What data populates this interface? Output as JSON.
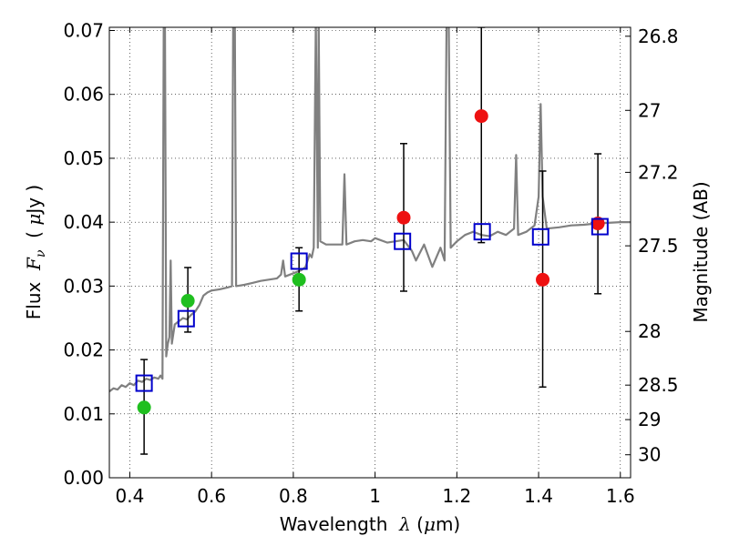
{
  "chart_data": {
    "type": "scatter",
    "xlabel_prefix": "Wavelength  ",
    "xlabel_symbol": "λ",
    "xlabel_suffix": " (",
    "xlabel_mu": "μ",
    "xlabel_unit": "m)",
    "ylabel_prefix": "Flux  ",
    "ylabel_symbol": "F",
    "ylabel_sub": "ν",
    "ylabel_mid": "  ( ",
    "ylabel_mu": "μ",
    "ylabel_unit": "Jy )",
    "y2label": "Magnitude (AB)",
    "xlim": [
      0.35,
      1.625
    ],
    "ylim": [
      0.0,
      0.0705
    ],
    "grid": true,
    "x_ticks": [
      0.4,
      0.6,
      0.8,
      1.0,
      1.2,
      1.4,
      1.6
    ],
    "x_tick_labels": [
      "0.4",
      "0.6",
      "0.8",
      "1",
      "1.2",
      "1.4",
      "1.6"
    ],
    "y_ticks": [
      0.0,
      0.01,
      0.02,
      0.03,
      0.04,
      0.05,
      0.06,
      0.07
    ],
    "y_tick_labels": [
      "0.00",
      "0.01",
      "0.02",
      "0.03",
      "0.04",
      "0.05",
      "0.06",
      "0.07"
    ],
    "y2_ticks": [
      {
        "label": "26.8",
        "flux": 0.0691
      },
      {
        "label": "27",
        "flux": 0.0575
      },
      {
        "label": "27.2",
        "flux": 0.0478
      },
      {
        "label": "27.5",
        "flux": 0.0363
      },
      {
        "label": "28",
        "flux": 0.0229
      },
      {
        "label": "28.5",
        "flux": 0.0145
      },
      {
        "label": "29",
        "flux": 0.0091
      },
      {
        "label": "30",
        "flux": 0.0036
      }
    ],
    "colors": {
      "spectrum": "#808080",
      "green_points": "#1fbf1f",
      "red_points": "#ee1111",
      "model_boxes": "#0000cc",
      "errorbars": "#000000"
    },
    "series": [
      {
        "name": "model_spectrum",
        "kind": "line",
        "points": [
          [
            0.35,
            0.0135
          ],
          [
            0.36,
            0.014
          ],
          [
            0.37,
            0.0138
          ],
          [
            0.38,
            0.0145
          ],
          [
            0.39,
            0.0142
          ],
          [
            0.4,
            0.0148
          ],
          [
            0.41,
            0.0145
          ],
          [
            0.42,
            0.0152
          ],
          [
            0.43,
            0.015
          ],
          [
            0.44,
            0.0155
          ],
          [
            0.45,
            0.0153
          ],
          [
            0.46,
            0.0157
          ],
          [
            0.47,
            0.0155
          ],
          [
            0.475,
            0.016
          ],
          [
            0.48,
            0.0155
          ],
          [
            0.483,
            0.072
          ],
          [
            0.486,
            0.072
          ],
          [
            0.489,
            0.019
          ],
          [
            0.493,
            0.021
          ],
          [
            0.497,
            0.022
          ],
          [
            0.5,
            0.034
          ],
          [
            0.503,
            0.021
          ],
          [
            0.51,
            0.024
          ],
          [
            0.52,
            0.0245
          ],
          [
            0.53,
            0.025
          ],
          [
            0.54,
            0.0248
          ],
          [
            0.55,
            0.0255
          ],
          [
            0.56,
            0.026
          ],
          [
            0.57,
            0.027
          ],
          [
            0.58,
            0.0285
          ],
          [
            0.59,
            0.029
          ],
          [
            0.6,
            0.0293
          ],
          [
            0.62,
            0.0295
          ],
          [
            0.64,
            0.0298
          ],
          [
            0.65,
            0.03
          ],
          [
            0.653,
            0.072
          ],
          [
            0.657,
            0.072
          ],
          [
            0.66,
            0.03
          ],
          [
            0.68,
            0.0302
          ],
          [
            0.7,
            0.0305
          ],
          [
            0.72,
            0.0308
          ],
          [
            0.74,
            0.031
          ],
          [
            0.76,
            0.0312
          ],
          [
            0.77,
            0.0318
          ],
          [
            0.775,
            0.034
          ],
          [
            0.78,
            0.0315
          ],
          [
            0.8,
            0.032
          ],
          [
            0.82,
            0.0325
          ],
          [
            0.83,
            0.033
          ],
          [
            0.84,
            0.035
          ],
          [
            0.845,
            0.0345
          ],
          [
            0.85,
            0.036
          ],
          [
            0.855,
            0.072
          ],
          [
            0.86,
            0.036
          ],
          [
            0.862,
            0.072
          ],
          [
            0.866,
            0.037
          ],
          [
            0.88,
            0.0365
          ],
          [
            0.9,
            0.0365
          ],
          [
            0.92,
            0.0365
          ],
          [
            0.925,
            0.0475
          ],
          [
            0.93,
            0.0365
          ],
          [
            0.95,
            0.037
          ],
          [
            0.97,
            0.0372
          ],
          [
            0.99,
            0.037
          ],
          [
            1.0,
            0.0375
          ],
          [
            1.03,
            0.0368
          ],
          [
            1.05,
            0.037
          ],
          [
            1.07,
            0.0372
          ],
          [
            1.09,
            0.0355
          ],
          [
            1.1,
            0.034
          ],
          [
            1.12,
            0.0365
          ],
          [
            1.14,
            0.033
          ],
          [
            1.16,
            0.036
          ],
          [
            1.17,
            0.034
          ],
          [
            1.175,
            0.072
          ],
          [
            1.18,
            0.072
          ],
          [
            1.185,
            0.036
          ],
          [
            1.2,
            0.037
          ],
          [
            1.22,
            0.038
          ],
          [
            1.24,
            0.0385
          ],
          [
            1.26,
            0.038
          ],
          [
            1.28,
            0.0378
          ],
          [
            1.3,
            0.0385
          ],
          [
            1.32,
            0.038
          ],
          [
            1.34,
            0.039
          ],
          [
            1.345,
            0.0505
          ],
          [
            1.35,
            0.038
          ],
          [
            1.37,
            0.0385
          ],
          [
            1.39,
            0.0395
          ],
          [
            1.4,
            0.044
          ],
          [
            1.405,
            0.0585
          ],
          [
            1.41,
            0.044
          ],
          [
            1.42,
            0.039
          ],
          [
            1.45,
            0.0392
          ],
          [
            1.48,
            0.0395
          ],
          [
            1.51,
            0.0396
          ],
          [
            1.54,
            0.0398
          ],
          [
            1.57,
            0.0399
          ],
          [
            1.6,
            0.04
          ],
          [
            1.625,
            0.04
          ]
        ]
      },
      {
        "name": "observed_green",
        "kind": "points",
        "points": [
          {
            "x": 0.435,
            "y": 0.011,
            "err_low": 0.0037,
            "err_high": 0.0185
          },
          {
            "x": 0.542,
            "y": 0.0277,
            "err_low": 0.0228,
            "err_high": 0.0329
          },
          {
            "x": 0.814,
            "y": 0.031,
            "err_low": 0.0261,
            "err_high": 0.036
          }
        ]
      },
      {
        "name": "observed_red",
        "kind": "points",
        "points": [
          {
            "x": 1.07,
            "y": 0.0407,
            "err_low": 0.0292,
            "err_high": 0.0523
          },
          {
            "x": 1.26,
            "y": 0.0566,
            "err_low": 0.0368,
            "err_high": 0.0705
          },
          {
            "x": 1.41,
            "y": 0.031,
            "err_low": 0.0142,
            "err_high": 0.048
          },
          {
            "x": 1.545,
            "y": 0.0398,
            "err_low": 0.0288,
            "err_high": 0.0507
          }
        ]
      },
      {
        "name": "model_photometry",
        "kind": "boxes",
        "points": [
          {
            "x": 0.435,
            "y": 0.0148
          },
          {
            "x": 0.538,
            "y": 0.0249
          },
          {
            "x": 0.814,
            "y": 0.0339
          },
          {
            "x": 1.067,
            "y": 0.037
          },
          {
            "x": 1.262,
            "y": 0.0385
          },
          {
            "x": 1.405,
            "y": 0.0377
          },
          {
            "x": 1.55,
            "y": 0.0393
          }
        ]
      }
    ]
  }
}
